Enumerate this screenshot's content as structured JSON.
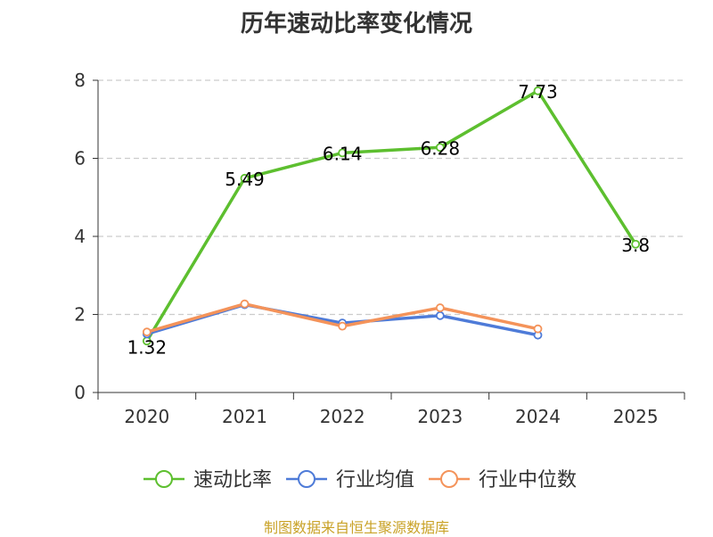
{
  "chart_data": {
    "type": "line",
    "title": "历年速动比率变化情况",
    "categories": [
      "2020",
      "2021",
      "2022",
      "2023",
      "2024",
      "2025"
    ],
    "ylim": [
      0,
      8
    ],
    "yticks": [
      "0",
      "2",
      "4",
      "6",
      "8"
    ],
    "grid": true,
    "legend_position": "bottom",
    "series": [
      {
        "name": "速动比率",
        "color": "#5dbf2f",
        "values": [
          1.32,
          5.49,
          6.14,
          6.28,
          7.73,
          3.8
        ],
        "labels": [
          "1.32",
          "5.49",
          "6.14",
          "6.28",
          "7.73",
          "3.8"
        ]
      },
      {
        "name": "行业均值",
        "color": "#4e7bd8",
        "values": [
          1.5,
          2.25,
          1.78,
          1.97,
          1.47,
          null
        ]
      },
      {
        "name": "行业中位数",
        "color": "#f4935a",
        "values": [
          1.55,
          2.27,
          1.7,
          2.17,
          1.63,
          null
        ]
      }
    ]
  },
  "footer": {
    "source": "制图数据来自恒生聚源数据库",
    "color": "#c9a227"
  }
}
